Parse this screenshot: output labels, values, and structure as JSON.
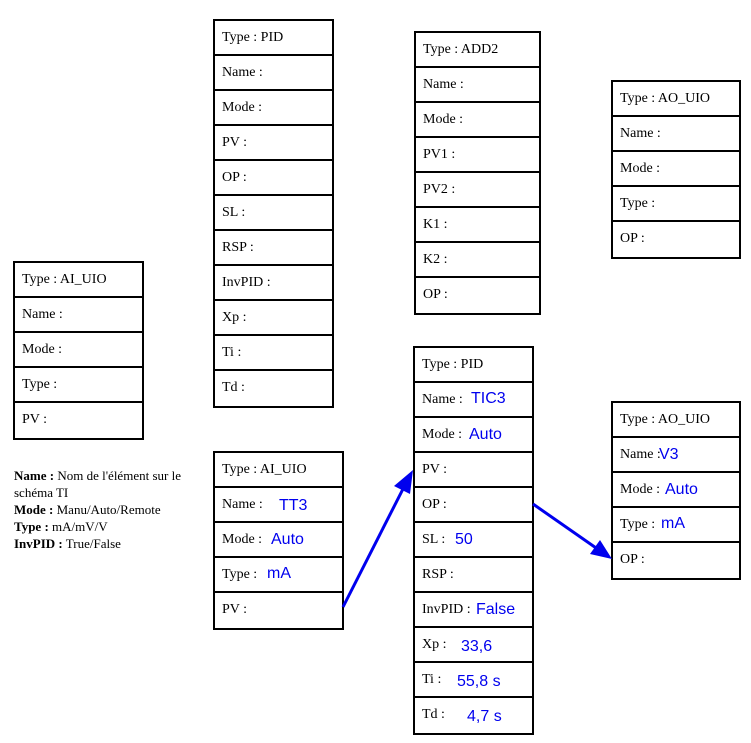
{
  "blocks": {
    "pid_top": {
      "type": "Type : PID",
      "rows": [
        "Name :",
        "Mode :",
        "PV :",
        "OP :",
        "SL :",
        "RSP :",
        "InvPID :",
        "Xp :",
        "Ti :",
        "Td :"
      ]
    },
    "add2": {
      "type": "Type : ADD2",
      "rows": [
        "Name :",
        "Mode :",
        "PV1 :",
        "PV2 :",
        "K1 :",
        "K2 :",
        "OP :"
      ]
    },
    "ao_top": {
      "type": "Type : AO_UIO",
      "rows": [
        "Name :",
        "Mode :",
        "Type :",
        "OP :"
      ]
    },
    "ai_left": {
      "type": "Type : AI_UIO",
      "rows": [
        "Name :",
        "Mode :",
        "Type :",
        "PV :"
      ]
    },
    "ai_tt3": {
      "type": "Type : AI_UIO",
      "rows": [
        {
          "label": "Name :",
          "value": "TT3"
        },
        {
          "label": "Mode :",
          "value": "Auto"
        },
        {
          "label": "Type :",
          "value": "mA"
        },
        {
          "label": "PV :",
          "value": ""
        }
      ]
    },
    "pid_tic3": {
      "type": "Type : PID",
      "rows": [
        {
          "label": "Name :",
          "value": "TIC3"
        },
        {
          "label": "Mode :",
          "value": "Auto"
        },
        {
          "label": "PV :",
          "value": ""
        },
        {
          "label": "OP :",
          "value": ""
        },
        {
          "label": "SL :",
          "value": "50"
        },
        {
          "label": "RSP :",
          "value": ""
        },
        {
          "label": "InvPID :",
          "value": "False"
        },
        {
          "label": "Xp :",
          "value": "33,6"
        },
        {
          "label": "Ti :",
          "value": "55,8 s"
        },
        {
          "label": "Td :",
          "value": "4,7 s"
        }
      ]
    },
    "ao_v3": {
      "type": "Type : AO_UIO",
      "rows": [
        {
          "label": "Name :",
          "value": "V3"
        },
        {
          "label": "Mode :",
          "value": "Auto"
        },
        {
          "label": "Type :",
          "value": "mA"
        },
        {
          "label": "OP :",
          "value": ""
        }
      ]
    }
  },
  "legend": [
    {
      "key": "Name :",
      "text": "Nom de l'élément sur le schéma TI"
    },
    {
      "key": "Mode :",
      "text": "Manu/Auto/Remote"
    },
    {
      "key": "Type :",
      "text": "mA/mV/V"
    },
    {
      "key": "InvPID :",
      "text": "True/False"
    }
  ],
  "colors": {
    "link": "#0000ee",
    "value_text": "#0000ee",
    "border": "#000000"
  }
}
